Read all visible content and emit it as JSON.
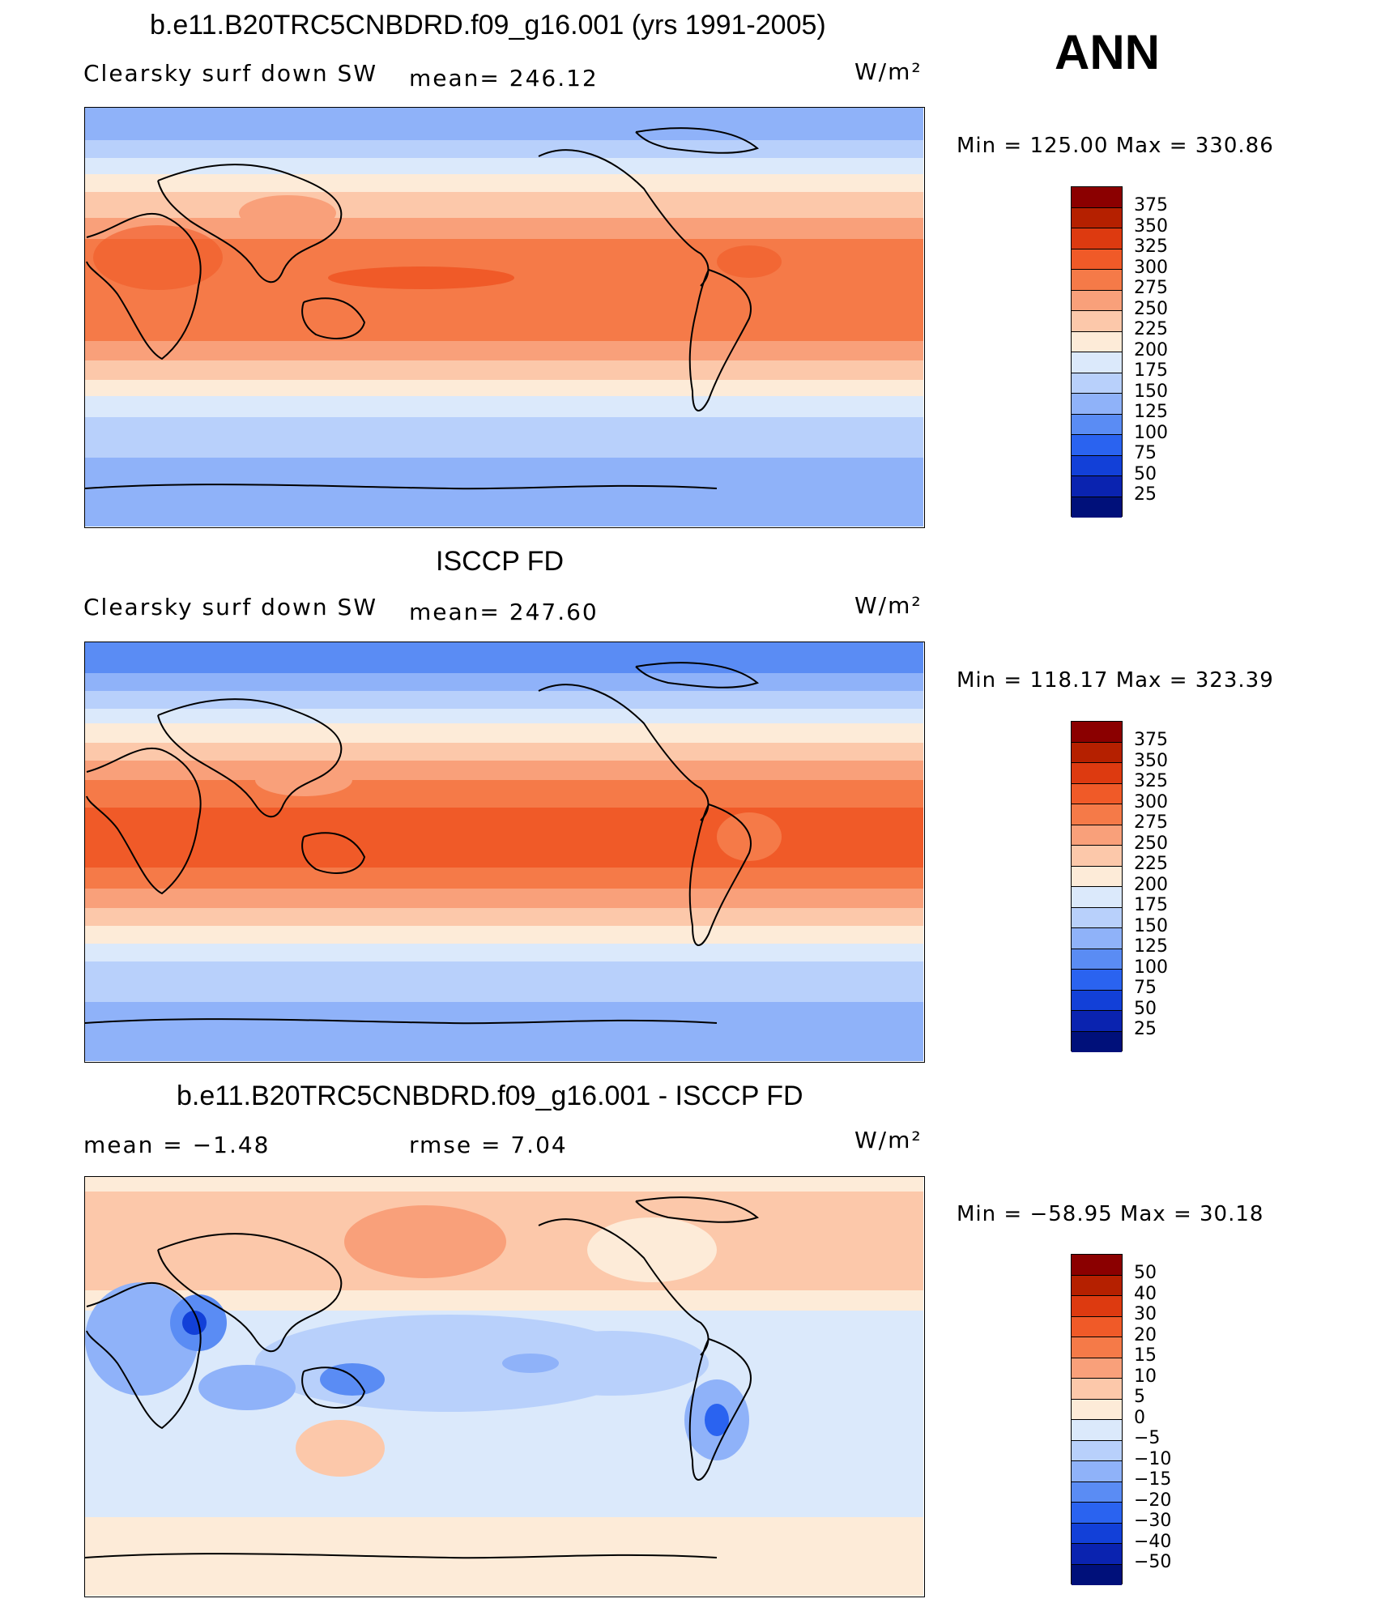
{
  "season": "ANN",
  "panels": [
    {
      "title": "b.e11.B20TRC5CNBDRD.f09_g16.001 (yrs 1991-2005)",
      "left_label": "Clearsky surf down SW",
      "center_label": "mean= 246.12",
      "units": "W/m²",
      "min_label": "Min = 125.00 Max = 330.86",
      "colorbar": {
        "levels": [
          "375",
          "350",
          "325",
          "300",
          "275",
          "250",
          "225",
          "200",
          "175",
          "150",
          "125",
          "100",
          "75",
          "50",
          "25"
        ],
        "colors": [
          "#8b0000",
          "#b52000",
          "#dd3a10",
          "#f05a28",
          "#f57a48",
          "#f9a07a",
          "#fcc8aa",
          "#fdebd8",
          "#dbe9fb",
          "#b8d0fb",
          "#8fb2f9",
          "#5a8cf4",
          "#2a63f0",
          "#1240d8",
          "#0a23b0",
          "#00107a"
        ]
      }
    },
    {
      "title": "ISCCP FD",
      "left_label": "Clearsky surf down SW",
      "center_label": "mean= 247.60",
      "units": "W/m²",
      "min_label": "Min = 118.17 Max = 323.39",
      "colorbar": {
        "levels": [
          "375",
          "350",
          "325",
          "300",
          "275",
          "250",
          "225",
          "200",
          "175",
          "150",
          "125",
          "100",
          "75",
          "50",
          "25"
        ],
        "colors": [
          "#8b0000",
          "#b52000",
          "#dd3a10",
          "#f05a28",
          "#f57a48",
          "#f9a07a",
          "#fcc8aa",
          "#fdebd8",
          "#dbe9fb",
          "#b8d0fb",
          "#8fb2f9",
          "#5a8cf4",
          "#2a63f0",
          "#1240d8",
          "#0a23b0",
          "#00107a"
        ]
      }
    },
    {
      "title": "b.e11.B20TRC5CNBDRD.f09_g16.001 - ISCCP FD",
      "left_label": "mean =   −1.48",
      "center_label": "rmse =    7.04",
      "units": "W/m²",
      "min_label": "Min = −58.95 Max =   30.18",
      "colorbar": {
        "levels": [
          "50",
          "40",
          "30",
          "20",
          "15",
          "10",
          "5",
          "0",
          "−5",
          "−10",
          "−15",
          "−20",
          "−30",
          "−40",
          "−50"
        ],
        "colors": [
          "#8b0000",
          "#b52000",
          "#dd3a10",
          "#f05a28",
          "#f57a48",
          "#f9a07a",
          "#fcc8aa",
          "#fdebd8",
          "#dbe9fb",
          "#b8d0fb",
          "#8fb2f9",
          "#5a8cf4",
          "#2a63f0",
          "#1240d8",
          "#0a23b0",
          "#00107a"
        ]
      }
    }
  ]
}
